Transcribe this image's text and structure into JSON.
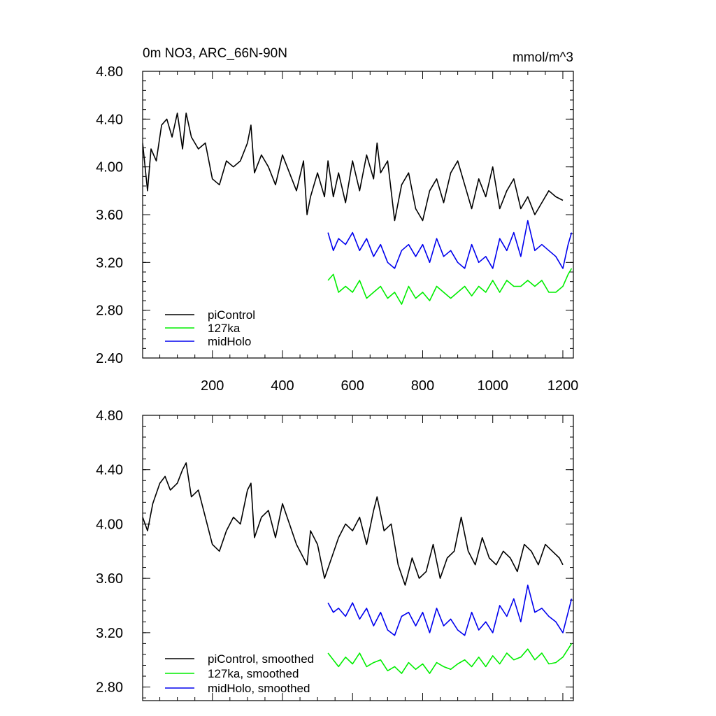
{
  "chart_data": [
    {
      "type": "line",
      "title": "0m NO3, ARC_66N-90N",
      "units": "mmol/m^3",
      "xlim": [
        1,
        1230
      ],
      "ylim": [
        2.4,
        4.8
      ],
      "xticks": [
        200,
        400,
        600,
        800,
        1000,
        1200
      ],
      "yticks": [
        2.4,
        2.8,
        3.2,
        3.6,
        4.0,
        4.4,
        4.8
      ],
      "ytick_labels": [
        "2.40",
        "2.80",
        "3.20",
        "3.60",
        "4.00",
        "4.40",
        "4.80"
      ],
      "legend_position": "bottom-left",
      "series": [
        {
          "name": "piControl",
          "color": "#000000",
          "x": [
            1,
            15,
            25,
            40,
            55,
            70,
            85,
            100,
            115,
            125,
            140,
            160,
            180,
            200,
            220,
            240,
            260,
            280,
            300,
            310,
            320,
            340,
            360,
            380,
            400,
            420,
            440,
            460,
            470,
            480,
            500,
            520,
            530,
            545,
            560,
            580,
            600,
            620,
            640,
            660,
            670,
            680,
            700,
            720,
            740,
            760,
            780,
            800,
            820,
            840,
            860,
            880,
            900,
            920,
            940,
            960,
            980,
            1000,
            1020,
            1040,
            1060,
            1080,
            1100,
            1120,
            1140,
            1160,
            1180,
            1200
          ],
          "values": [
            4.2,
            3.8,
            4.15,
            4.05,
            4.35,
            4.4,
            4.25,
            4.45,
            4.15,
            4.45,
            4.25,
            4.15,
            4.2,
            3.9,
            3.85,
            4.05,
            4.0,
            4.05,
            4.2,
            4.35,
            3.95,
            4.1,
            4.0,
            3.85,
            4.1,
            3.95,
            3.8,
            4.05,
            3.6,
            3.75,
            3.95,
            3.75,
            4.05,
            3.75,
            3.95,
            3.7,
            4.05,
            3.8,
            4.1,
            3.9,
            4.2,
            3.95,
            4.05,
            3.55,
            3.85,
            3.95,
            3.65,
            3.55,
            3.8,
            3.9,
            3.7,
            3.95,
            4.05,
            3.85,
            3.65,
            3.9,
            3.75,
            4.0,
            3.65,
            3.8,
            3.9,
            3.65,
            3.75,
            3.6,
            3.7,
            3.8,
            3.75,
            3.72
          ]
        },
        {
          "name": "127ka",
          "color": "#00ee00",
          "x": [
            530,
            545,
            560,
            580,
            600,
            620,
            640,
            660,
            680,
            700,
            720,
            740,
            760,
            780,
            800,
            820,
            840,
            860,
            880,
            900,
            920,
            940,
            960,
            980,
            1000,
            1020,
            1040,
            1060,
            1080,
            1100,
            1120,
            1140,
            1160,
            1180,
            1200,
            1215,
            1225
          ],
          "values": [
            3.05,
            3.1,
            2.95,
            3.0,
            2.95,
            3.05,
            2.9,
            2.95,
            3.0,
            2.9,
            2.95,
            2.85,
            3.0,
            2.9,
            2.95,
            2.88,
            3.0,
            2.95,
            2.9,
            2.95,
            3.0,
            2.92,
            3.0,
            2.95,
            3.05,
            2.95,
            3.05,
            3.0,
            3.0,
            3.05,
            3.0,
            3.05,
            2.95,
            2.95,
            3.0,
            3.1,
            3.15
          ]
        },
        {
          "name": "midHolo",
          "color": "#0000ee",
          "x": [
            530,
            545,
            560,
            580,
            600,
            620,
            640,
            660,
            680,
            700,
            720,
            740,
            760,
            780,
            800,
            820,
            840,
            860,
            880,
            900,
            920,
            940,
            960,
            980,
            1000,
            1020,
            1040,
            1060,
            1080,
            1100,
            1120,
            1140,
            1160,
            1180,
            1200,
            1215,
            1225
          ],
          "values": [
            3.45,
            3.3,
            3.4,
            3.35,
            3.45,
            3.3,
            3.4,
            3.25,
            3.35,
            3.2,
            3.15,
            3.3,
            3.35,
            3.25,
            3.35,
            3.2,
            3.4,
            3.25,
            3.3,
            3.2,
            3.15,
            3.35,
            3.2,
            3.25,
            3.15,
            3.4,
            3.3,
            3.45,
            3.25,
            3.55,
            3.3,
            3.35,
            3.3,
            3.25,
            3.15,
            3.35,
            3.45
          ]
        }
      ]
    },
    {
      "type": "line",
      "xlim": [
        1,
        1230
      ],
      "ylim": [
        2.7,
        4.8
      ],
      "xticks": [
        200,
        400,
        600,
        800,
        1000,
        1200
      ],
      "yticks": [
        2.8,
        3.2,
        3.6,
        4.0,
        4.4,
        4.8
      ],
      "ytick_labels": [
        "2.80",
        "3.20",
        "3.60",
        "4.00",
        "4.40",
        "4.80"
      ],
      "legend_position": "bottom-left",
      "series": [
        {
          "name": "piControl, smoothed",
          "color": "#000000",
          "x": [
            1,
            15,
            30,
            50,
            65,
            80,
            100,
            115,
            125,
            140,
            160,
            180,
            200,
            220,
            240,
            260,
            280,
            300,
            310,
            320,
            340,
            360,
            380,
            400,
            420,
            440,
            460,
            470,
            480,
            500,
            520,
            540,
            560,
            580,
            600,
            620,
            640,
            660,
            670,
            690,
            710,
            730,
            750,
            770,
            790,
            810,
            830,
            850,
            870,
            890,
            910,
            930,
            950,
            970,
            990,
            1010,
            1030,
            1050,
            1070,
            1090,
            1110,
            1130,
            1150,
            1170,
            1190,
            1200
          ],
          "values": [
            4.05,
            3.95,
            4.15,
            4.3,
            4.35,
            4.25,
            4.3,
            4.4,
            4.45,
            4.2,
            4.25,
            4.05,
            3.85,
            3.8,
            3.95,
            4.05,
            4.0,
            4.25,
            4.3,
            3.9,
            4.05,
            4.1,
            3.9,
            4.15,
            4.0,
            3.85,
            3.75,
            3.7,
            3.95,
            3.85,
            3.6,
            3.75,
            3.9,
            4.0,
            3.95,
            4.05,
            3.85,
            4.1,
            4.2,
            3.95,
            4.0,
            3.7,
            3.55,
            3.75,
            3.6,
            3.65,
            3.85,
            3.6,
            3.75,
            3.8,
            4.05,
            3.8,
            3.7,
            3.9,
            3.75,
            3.7,
            3.8,
            3.75,
            3.65,
            3.85,
            3.8,
            3.7,
            3.85,
            3.8,
            3.75,
            3.7
          ]
        },
        {
          "name": "127ka, smoothed",
          "color": "#00ee00",
          "x": [
            530,
            545,
            560,
            580,
            600,
            620,
            640,
            660,
            680,
            700,
            720,
            740,
            760,
            780,
            800,
            820,
            840,
            860,
            880,
            900,
            920,
            940,
            960,
            980,
            1000,
            1020,
            1040,
            1060,
            1080,
            1100,
            1120,
            1140,
            1160,
            1180,
            1200,
            1215,
            1225
          ],
          "values": [
            3.05,
            3.0,
            2.95,
            3.02,
            2.97,
            3.05,
            2.95,
            2.98,
            3.0,
            2.92,
            2.95,
            2.9,
            2.98,
            2.93,
            2.97,
            2.9,
            2.98,
            2.95,
            2.93,
            2.97,
            3.0,
            2.95,
            3.02,
            2.95,
            3.03,
            2.97,
            3.05,
            3.0,
            3.02,
            3.08,
            3.0,
            3.05,
            2.97,
            2.98,
            3.02,
            3.08,
            3.12
          ]
        },
        {
          "name": "midHolo, smoothed",
          "color": "#0000ee",
          "x": [
            530,
            545,
            560,
            580,
            600,
            620,
            640,
            660,
            680,
            700,
            720,
            740,
            760,
            780,
            800,
            820,
            840,
            860,
            880,
            900,
            920,
            940,
            960,
            980,
            1000,
            1020,
            1040,
            1060,
            1080,
            1100,
            1120,
            1140,
            1160,
            1180,
            1200,
            1215,
            1225
          ],
          "values": [
            3.42,
            3.35,
            3.38,
            3.32,
            3.42,
            3.3,
            3.38,
            3.25,
            3.35,
            3.22,
            3.18,
            3.32,
            3.35,
            3.25,
            3.35,
            3.2,
            3.38,
            3.25,
            3.3,
            3.22,
            3.18,
            3.35,
            3.22,
            3.28,
            3.2,
            3.4,
            3.32,
            3.45,
            3.28,
            3.55,
            3.35,
            3.38,
            3.32,
            3.28,
            3.2,
            3.35,
            3.45
          ]
        }
      ]
    }
  ]
}
